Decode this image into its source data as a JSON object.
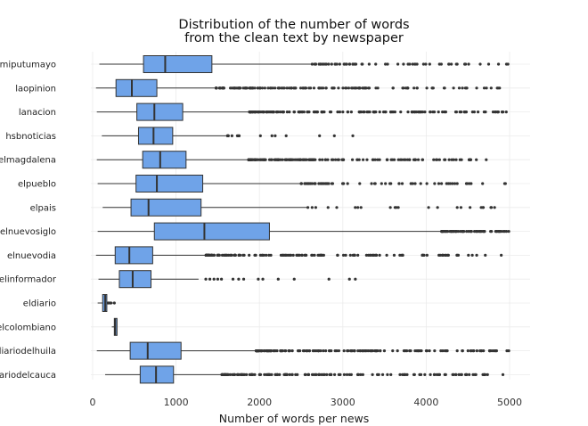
{
  "chart_data": {
    "type": "boxplot",
    "orientation": "horizontal",
    "title_lines": [
      "Distribution of the number of words",
      "from the clean text by newspaper"
    ],
    "xlabel": "Number of words per news",
    "ylabel": "",
    "xlim": [
      -150,
      5250
    ],
    "xticks": [
      0,
      1000,
      2000,
      3000,
      4000,
      5000
    ],
    "grid": true,
    "box_color": "#6fa3e8",
    "edge_color": "#333333",
    "categories": [
      "miputumayo",
      "laopinion",
      "lanacion",
      "hsbnoticias",
      "elmagdalena",
      "elpueblo",
      "elpais",
      "elnuevosiglo",
      "elnuevodia",
      "elinformador",
      "eldiario",
      "elcolombiano",
      "diariodelhuila",
      "diariodelcauca"
    ],
    "boxes": [
      {
        "category": "miputumayo",
        "whisker_low": 80,
        "q1": 610,
        "median": 870,
        "q3": 1430,
        "whisker_high": 2630,
        "outliers_from": 2630,
        "outliers_to": 4980,
        "outlier_density": "medium"
      },
      {
        "category": "laopinion",
        "whisker_low": 40,
        "q1": 280,
        "median": 470,
        "q3": 770,
        "whisker_high": 1480,
        "outliers_from": 1480,
        "outliers_to": 4880,
        "outlier_density": "high"
      },
      {
        "category": "lanacion",
        "whisker_low": 50,
        "q1": 530,
        "median": 740,
        "q3": 1080,
        "whisker_high": 1880,
        "outliers_from": 1880,
        "outliers_to": 4960,
        "outlier_density": "high"
      },
      {
        "category": "hsbnoticias",
        "whisker_low": 110,
        "q1": 550,
        "median": 730,
        "q3": 960,
        "whisker_high": 1600,
        "outliers_from": 1600,
        "outliers_to": 3120,
        "outlier_density": "sparse"
      },
      {
        "category": "elmagdalena",
        "whisker_low": 50,
        "q1": 600,
        "median": 810,
        "q3": 1120,
        "whisker_high": 1870,
        "outliers_from": 1870,
        "outliers_to": 4720,
        "outlier_density": "high"
      },
      {
        "category": "elpueblo",
        "whisker_low": 60,
        "q1": 520,
        "median": 770,
        "q3": 1320,
        "whisker_high": 2500,
        "outliers_from": 2500,
        "outliers_to": 4950,
        "outlier_density": "medium"
      },
      {
        "category": "elpais",
        "whisker_low": 120,
        "q1": 460,
        "median": 670,
        "q3": 1300,
        "whisker_high": 2580,
        "outliers_from": 2580,
        "outliers_to": 4820,
        "outlier_density": "low"
      },
      {
        "category": "elnuevosiglo",
        "whisker_low": 60,
        "q1": 740,
        "median": 1340,
        "q3": 2120,
        "whisker_high": 4180,
        "outliers_from": 4180,
        "outliers_to": 4990,
        "outlier_density": "medium"
      },
      {
        "category": "elnuevodia",
        "whisker_low": 40,
        "q1": 270,
        "median": 440,
        "q3": 720,
        "whisker_high": 1360,
        "outliers_from": 1360,
        "outliers_to": 4900,
        "outlier_density": "high"
      },
      {
        "category": "elinformador",
        "whisker_low": 70,
        "q1": 320,
        "median": 480,
        "q3": 700,
        "whisker_high": 1270,
        "outliers_from": 1350,
        "outliers_to": 3150,
        "outlier_density": "sparse"
      },
      {
        "category": "eldiario",
        "whisker_low": 60,
        "q1": 120,
        "median": 150,
        "q3": 170,
        "whisker_high": 260,
        "outliers_from": 180,
        "outliers_to": 260,
        "outlier_density": "tiny"
      },
      {
        "category": "elcolombiano",
        "whisker_low": 230,
        "q1": 260,
        "median": 270,
        "q3": 280,
        "whisker_high": 290,
        "outliers_from": 0,
        "outliers_to": 0,
        "outlier_density": "none"
      },
      {
        "category": "diariodelhuila",
        "whisker_low": 50,
        "q1": 450,
        "median": 660,
        "q3": 1060,
        "whisker_high": 1960,
        "outliers_from": 1960,
        "outliers_to": 4990,
        "outlier_density": "high"
      },
      {
        "category": "diariodelcauca",
        "whisker_low": 150,
        "q1": 570,
        "median": 760,
        "q3": 970,
        "whisker_high": 1550,
        "outliers_from": 1550,
        "outliers_to": 4920,
        "outlier_density": "high"
      }
    ]
  }
}
